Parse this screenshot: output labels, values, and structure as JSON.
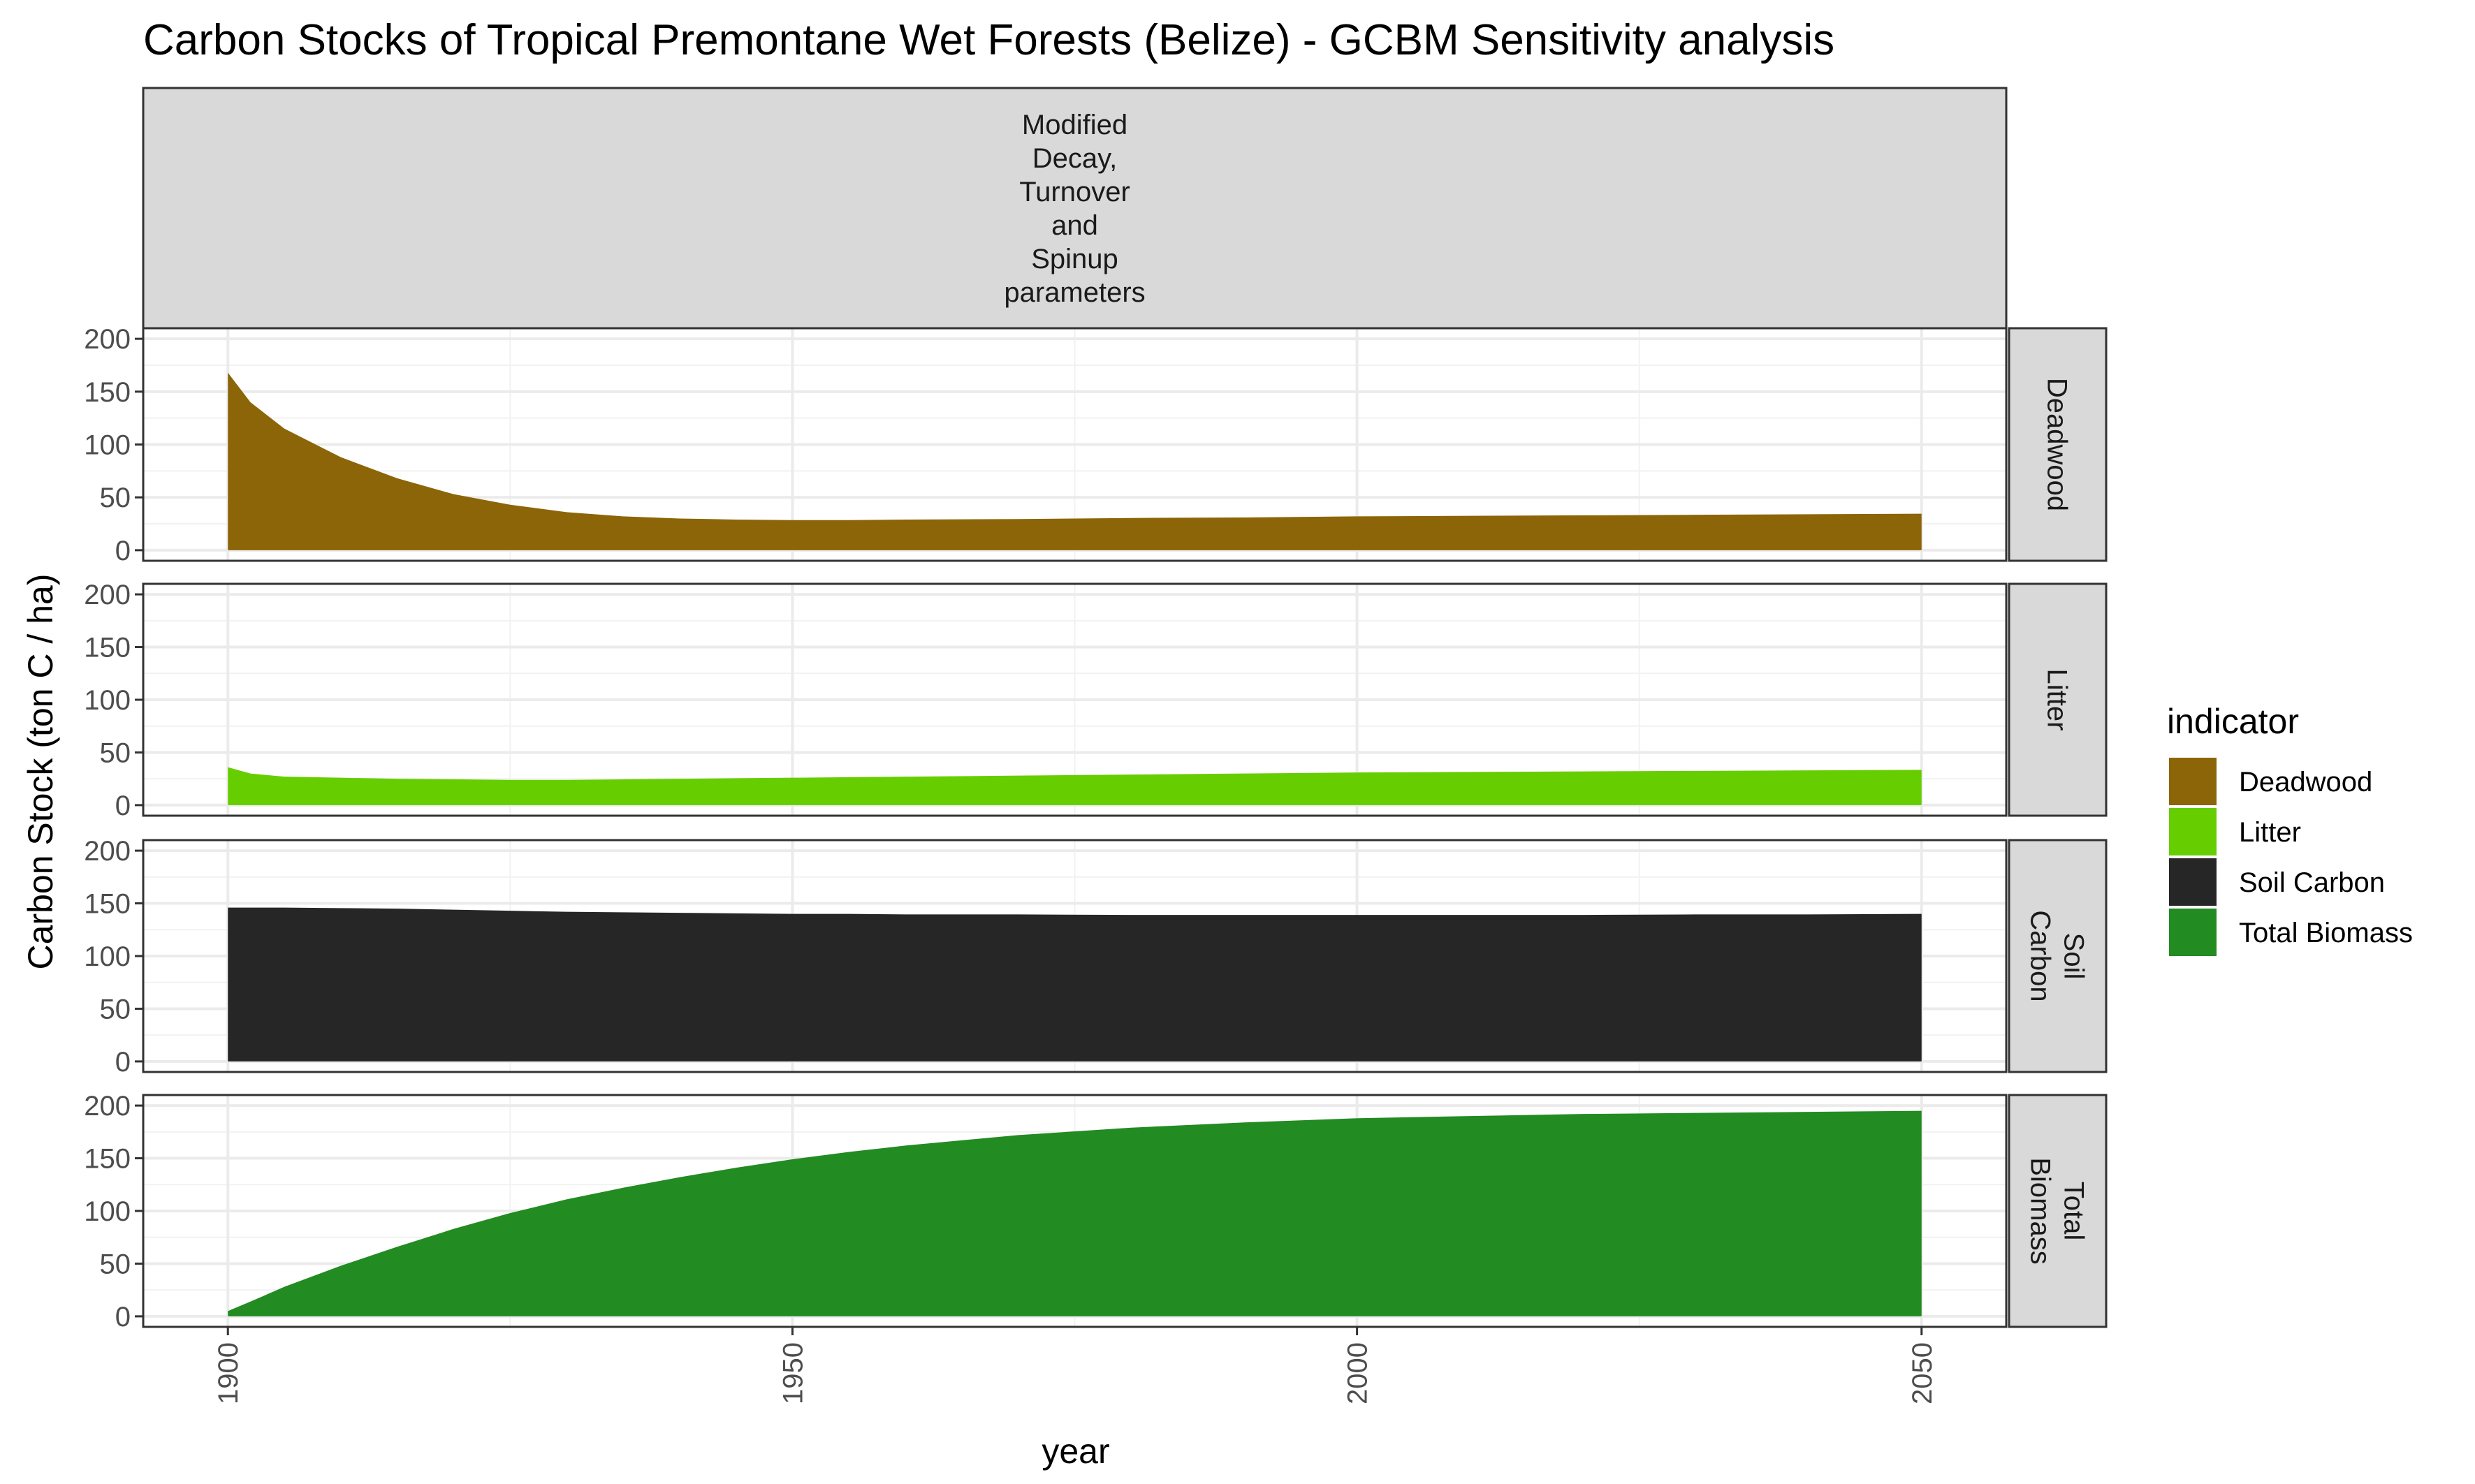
{
  "chart_data": {
    "type": "area",
    "title": "Carbon Stocks of Tropical Premontane Wet Forests (Belize) - GCBM Sensitivity analysis",
    "column_facet": [
      "Modified",
      "Decay,",
      "Turnover",
      "and",
      "Spinup",
      "parameters"
    ],
    "xlabel": "year",
    "ylabel": "Carbon Stock (ton C / ha)",
    "xlim": [
      1892.5,
      2057.5
    ],
    "ylim": [
      -10,
      210
    ],
    "x_ticks": [
      "1900",
      "1950",
      "2000",
      "2050"
    ],
    "y_ticks": [
      "0",
      "50",
      "100",
      "150",
      "200"
    ],
    "grid": true,
    "legend": {
      "title": "indicator",
      "position": "right",
      "items": [
        {
          "label": "Deadwood",
          "color": "#8B6508"
        },
        {
          "label": "Litter",
          "color": "#66CD00"
        },
        {
          "label": "Soil Carbon",
          "color": "#262626"
        },
        {
          "label": "Total Biomass",
          "color": "#228B22"
        }
      ]
    },
    "x": [
      1900,
      1902,
      1905,
      1910,
      1915,
      1920,
      1925,
      1930,
      1935,
      1940,
      1945,
      1950,
      1955,
      1960,
      1970,
      1980,
      1990,
      2000,
      2010,
      2020,
      2030,
      2040,
      2050
    ],
    "series": [
      {
        "name": "Deadwood",
        "strip": [
          "Deadwood"
        ],
        "color": "#8B6508",
        "values": [
          168,
          140,
          115,
          88,
          68,
          53,
          43,
          36,
          32,
          30,
          29,
          28.5,
          28.5,
          29,
          29.5,
          30.5,
          31,
          32,
          32.5,
          33,
          33.5,
          34,
          34.5
        ]
      },
      {
        "name": "Litter",
        "strip": [
          "Litter"
        ],
        "color": "#66CD00",
        "values": [
          36,
          30,
          27,
          26,
          25,
          24.5,
          24,
          24,
          24.5,
          25,
          25.5,
          26,
          26.5,
          27,
          28,
          29,
          30,
          31,
          31.5,
          32,
          32.5,
          33,
          33.5
        ]
      },
      {
        "name": "Soil Carbon",
        "strip": [
          "Soil",
          "Carbon"
        ],
        "color": "#262626",
        "values": [
          146,
          146,
          146,
          145.5,
          145,
          144,
          143,
          142,
          141.5,
          141,
          140.5,
          140,
          140,
          139.5,
          139.5,
          139,
          139,
          139,
          139,
          139,
          139.5,
          139.5,
          140
        ]
      },
      {
        "name": "Total Biomass",
        "strip": [
          "Total",
          "Biomass"
        ],
        "color": "#228B22",
        "values": [
          5,
          14,
          28,
          48,
          66,
          83,
          98,
          111,
          122,
          132,
          141,
          149,
          156,
          162,
          172,
          179,
          184,
          188,
          190,
          192,
          193,
          194,
          195
        ]
      }
    ]
  }
}
